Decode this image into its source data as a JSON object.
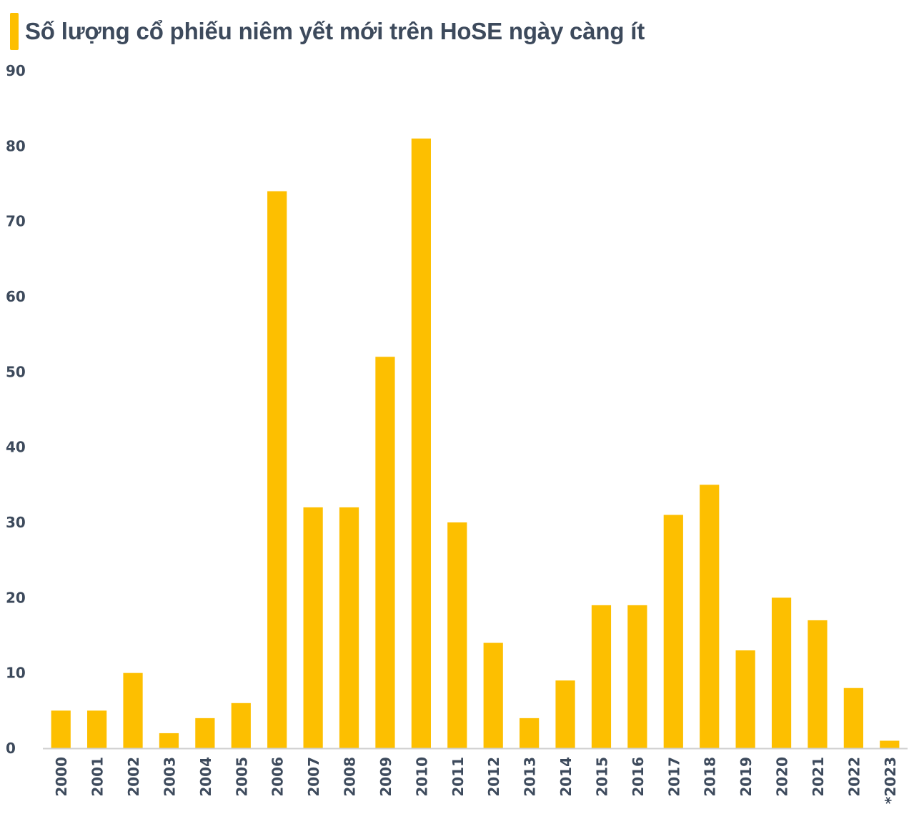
{
  "title": "Số lượng cổ phiếu niêm yết mới trên HoSE ngày càng ít",
  "colors": {
    "bar": "#FDBF00",
    "text": "#3D4A5C",
    "axis": "#CFCFCF",
    "title_accent": "#FDBF00"
  },
  "chart_data": {
    "type": "bar",
    "title": "Số lượng cổ phiếu niêm yết mới trên HoSE ngày càng ít",
    "xlabel": "",
    "ylabel": "",
    "categories": [
      "2000",
      "2001",
      "2002",
      "2003",
      "2004",
      "2005",
      "2006",
      "2007",
      "2008",
      "2009",
      "2010",
      "2011",
      "2012",
      "2013",
      "2014",
      "2015",
      "2016",
      "2017",
      "2018",
      "2019",
      "2020",
      "2021",
      "2022",
      "*2023"
    ],
    "values": [
      5,
      5,
      10,
      2,
      4,
      6,
      74,
      32,
      32,
      52,
      81,
      30,
      14,
      4,
      9,
      19,
      19,
      31,
      35,
      13,
      20,
      17,
      8,
      1
    ],
    "ylim": [
      0,
      90
    ],
    "yticks": [
      0,
      10,
      20,
      30,
      40,
      50,
      60,
      70,
      80,
      90
    ],
    "grid": false,
    "legend": "none"
  }
}
